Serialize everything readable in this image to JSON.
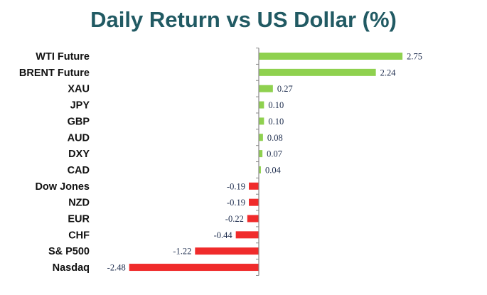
{
  "chart_data": {
    "type": "bar",
    "orientation": "horizontal",
    "title": "Daily Return vs US Dollar (%)",
    "xlabel": "",
    "ylabel": "",
    "grid": false,
    "legend": "none",
    "categories": [
      "WTI Future",
      "BRENT Future",
      "XAU",
      "JPY",
      "GBP",
      "AUD",
      "DXY",
      "CAD",
      "Dow Jones",
      "NZD",
      "EUR",
      "CHF",
      "S& P500",
      "Nasdaq"
    ],
    "values": [
      2.75,
      2.24,
      0.27,
      0.1,
      0.1,
      0.08,
      0.07,
      0.04,
      -0.19,
      -0.19,
      -0.22,
      -0.44,
      -1.22,
      -2.48
    ],
    "value_labels": [
      "2.75",
      "2.24",
      "0.27",
      "0.10",
      "0.10",
      "0.08",
      "0.07",
      "0.04",
      "-0.19",
      "-0.19",
      "-0.22",
      "-0.44",
      "-1.22",
      "-2.48"
    ],
    "colors": {
      "positive": "#8fd14f",
      "negative": "#f02b2b",
      "axis": "#8a8a8a",
      "title": "#215a63"
    }
  }
}
